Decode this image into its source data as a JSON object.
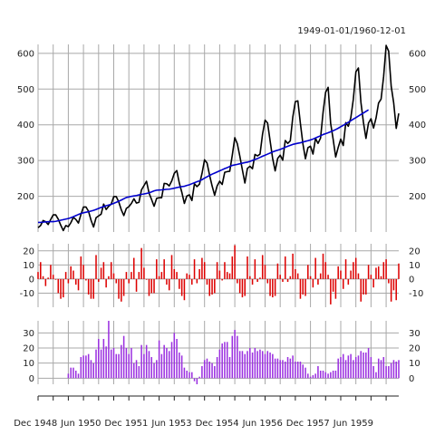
{
  "chart_data": [
    {
      "type": "line",
      "title": "1949-01-01/1960-12-01",
      "x_start": "1949-01",
      "x_end": "1960-12",
      "frequency": "monthly",
      "ylim": [
        100,
        625
      ],
      "yticks": [
        200,
        300,
        400,
        500,
        600
      ],
      "grid": true,
      "series": [
        {
          "color": "#000000",
          "values": [
            112,
            118,
            132,
            129,
            121,
            135,
            148,
            148,
            136,
            119,
            104,
            118,
            115,
            126,
            141,
            135,
            125,
            149,
            170,
            170,
            158,
            133,
            114,
            140,
            145,
            150,
            178,
            163,
            172,
            178,
            199,
            199,
            184,
            162,
            146,
            166,
            171,
            180,
            193,
            181,
            183,
            218,
            230,
            242,
            209,
            191,
            172,
            194,
            196,
            196,
            236,
            235,
            229,
            243,
            264,
            272,
            237,
            211,
            180,
            201,
            204,
            188,
            235,
            227,
            234,
            264,
            302,
            293,
            259,
            229,
            203,
            229,
            242,
            233,
            267,
            269,
            270,
            315,
            364,
            347,
            312,
            274,
            237,
            278,
            284,
            277,
            317,
            313,
            318,
            374,
            413,
            405,
            355,
            306,
            271,
            306,
            315,
            301,
            356,
            348,
            355,
            422,
            465,
            467,
            404,
            347,
            305,
            336,
            340,
            318,
            362,
            348,
            363,
            435,
            491,
            505,
            404,
            359,
            310,
            337,
            360,
            342,
            406,
            396,
            420,
            472,
            548,
            559,
            463,
            407,
            362,
            405,
            417,
            391,
            419,
            461,
            472,
            535,
            622,
            606,
            508,
            461,
            390,
            432
          ]
        },
        {
          "color": "#0000cc",
          "values": [
            126.7,
            126.9,
            127.6,
            128.3,
            128.8,
            129.2,
            129.0,
            129.8,
            131.4,
            133.0,
            134.5,
            136.1,
            137.7,
            139.9,
            142.9,
            146.0,
            149.0,
            151.7,
            153.8,
            155.3,
            156.8,
            158.6,
            160.6,
            163.1,
            166.0,
            168.8,
            171.2,
            173.6,
            175.5,
            177.5,
            180.2,
            183.1,
            186.2,
            189.4,
            193.1,
            196.6,
            198.1,
            199.8,
            201.0,
            202.1,
            203.8,
            205.3,
            206.5,
            207.9,
            209.8,
            212.3,
            215.0,
            217.0,
            217.5,
            217.9,
            218.8,
            219.5,
            219.8,
            221.1,
            222.6,
            224.2,
            225.7,
            227.1,
            228.0,
            230.4,
            232.3,
            235.2,
            238.0,
            240.6,
            243.1,
            246.4,
            250.7,
            254.6,
            258.2,
            261.8,
            264.8,
            268.0,
            271.1,
            274.2,
            277.6,
            280.2,
            283.3,
            286.3,
            287.8,
            289.3,
            291.0,
            292.6,
            294.2,
            295.4,
            297.6,
            300.3,
            302.8,
            305.6,
            308.8,
            312.0,
            315.0,
            318.0,
            320.9,
            324.1,
            326.8,
            328.8,
            331.2,
            334.1,
            337.1,
            340.0,
            342.6,
            345.2,
            346.8,
            348.4,
            349.7,
            351.7,
            353.8,
            355.5,
            357.6,
            360.1,
            363.2,
            366.4,
            369.3,
            372.8,
            375.3,
            377.6,
            380.5,
            383.5,
            386.8,
            390.4,
            394.6,
            398.6,
            402.9,
            407.2,
            411.5,
            415.8,
            420.1,
            424.4,
            428.8,
            433.1,
            437.5,
            441.9
          ]
        }
      ]
    },
    {
      "type": "bar",
      "x_start": "1949-01",
      "x_end": "1960-12",
      "ylim": [
        -20,
        25
      ],
      "yticks": [
        -10,
        0,
        10,
        20
      ],
      "color": "#dd0000",
      "grid": true,
      "values": [
        5,
        12,
        2,
        -5,
        1,
        10,
        3,
        0,
        -10,
        -14,
        -13,
        5,
        -3,
        9,
        6,
        -4,
        -8,
        16,
        10,
        -1,
        -11,
        -14,
        -14,
        17,
        -2,
        8,
        12,
        -6,
        2,
        12,
        4,
        -3,
        -14,
        -16,
        -12,
        5,
        -3,
        5,
        15,
        -9,
        5,
        22,
        8,
        0,
        -12,
        -10,
        -10,
        14,
        2,
        5,
        14,
        -4,
        -8,
        17,
        7,
        5,
        -7,
        -12,
        -15,
        4,
        3,
        -4,
        14,
        -3,
        7,
        15,
        12,
        -4,
        -12,
        -11,
        -10,
        12,
        6,
        -1,
        12,
        5,
        4,
        16,
        24,
        -3,
        -10,
        -13,
        -12,
        16,
        2,
        -4,
        14,
        -2,
        1,
        17,
        10,
        -3,
        -12,
        -13,
        -12,
        11,
        3,
        -2,
        16,
        -2,
        2,
        18,
        7,
        4,
        -14,
        -11,
        -12,
        10,
        2,
        -6,
        15,
        -4,
        4,
        18,
        12,
        3,
        -18,
        -9,
        -14,
        9,
        6,
        -7,
        14,
        -4,
        6,
        12,
        15,
        4,
        -16,
        -11,
        -11,
        10,
        3,
        -6,
        8,
        9,
        2,
        12,
        14,
        -3,
        -16,
        -8,
        -15,
        11
      ]
    },
    {
      "type": "bar",
      "x_start": "1949-01",
      "x_end": "1960-12",
      "ylim": [
        -4,
        38
      ],
      "yticks": [
        0,
        10,
        20,
        30
      ],
      "color": "#9b30e0",
      "grid": true,
      "values": [
        null,
        null,
        null,
        null,
        null,
        null,
        null,
        null,
        null,
        null,
        null,
        null,
        3,
        7,
        7,
        5,
        3,
        14,
        15,
        15,
        16,
        12,
        10,
        19,
        26,
        19,
        26,
        21,
        38,
        19,
        20,
        16,
        16,
        22,
        28,
        20,
        16,
        20,
        10,
        12,
        8,
        22,
        16,
        22,
        18,
        14,
        10,
        12,
        25,
        16,
        22,
        20,
        18,
        24,
        30,
        26,
        17,
        15,
        7,
        5,
        4,
        4,
        -2,
        -4,
        1,
        8,
        12,
        13,
        11,
        10,
        8,
        14,
        19,
        23,
        24,
        24,
        14,
        28,
        32,
        28,
        18,
        18,
        16,
        18,
        20,
        17,
        20,
        18,
        19,
        18,
        16,
        18,
        17,
        16,
        13,
        13,
        12,
        12,
        11,
        14,
        13,
        15,
        11,
        11,
        11,
        9,
        7,
        3,
        1,
        2,
        3,
        8,
        5,
        5,
        4,
        3,
        4,
        5,
        5,
        13,
        14,
        16,
        12,
        15,
        16,
        12,
        14,
        15,
        18,
        17,
        17,
        20,
        14,
        8,
        4,
        13,
        12,
        14,
        8,
        8,
        10,
        12,
        11,
        12
      ]
    },
    {
      "type": "axis",
      "tick_labels": [
        "Dec 1948",
        "Jun 1950",
        "Dec 1951",
        "Jun 1953",
        "Dec 1954",
        "Jun 1956",
        "Dec 1957",
        "Jun 1959"
      ]
    }
  ]
}
